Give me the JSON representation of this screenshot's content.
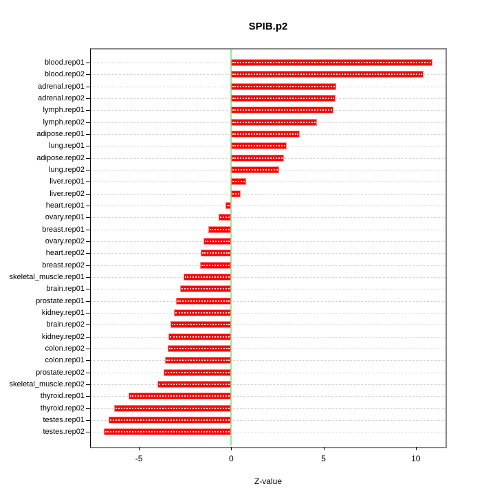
{
  "chart_data": {
    "type": "bar",
    "orientation": "horizontal",
    "title": "SPIB.p2",
    "xlabel": "Z-value",
    "ylabel": "",
    "categories": [
      "blood.rep01",
      "blood.rep02",
      "adrenal.rep01",
      "adrenal.rep02",
      "lymph.rep01",
      "lymph.rep02",
      "adipose.rep01",
      "lung.rep01",
      "adipose.rep02",
      "lung.rep02",
      "liver.rep01",
      "liver.rep02",
      "heart.rep01",
      "ovary.rep01",
      "breast.rep01",
      "ovary.rep02",
      "heart.rep02",
      "breast.rep02",
      "skeletal_muscle.rep01",
      "brain.rep01",
      "prostate.rep01",
      "kidney.rep01",
      "brain.rep02",
      "kidney.rep02",
      "colon.rep02",
      "colon.rep01",
      "prostate.rep02",
      "skeletal_muscle.rep02",
      "thyroid.rep01",
      "thyroid.rep02",
      "testes.rep01",
      "testes.rep02"
    ],
    "values": [
      10.9,
      10.4,
      5.7,
      5.65,
      5.55,
      4.65,
      3.7,
      3.0,
      2.85,
      2.6,
      0.8,
      0.5,
      -0.3,
      -0.7,
      -1.25,
      -1.5,
      -1.65,
      -1.7,
      -2.6,
      -2.75,
      -3.0,
      -3.1,
      -3.3,
      -3.4,
      -3.45,
      -3.6,
      -3.65,
      -4.0,
      -5.55,
      -6.35,
      -6.65,
      -6.9
    ],
    "xlim": [
      -7.61,
      11.61
    ],
    "xticks": [
      -5,
      0,
      5,
      10
    ],
    "grid": true,
    "legend": false,
    "colors": {
      "bar_fill": "#ff0000",
      "bar_edge": "#ff8a8a",
      "zero_line": "#90ee90",
      "gridline": "#c9c9c9",
      "box_border": "#888888",
      "left_axis": "#000000",
      "axis_text": "#000000",
      "background": "#ffffff"
    }
  }
}
